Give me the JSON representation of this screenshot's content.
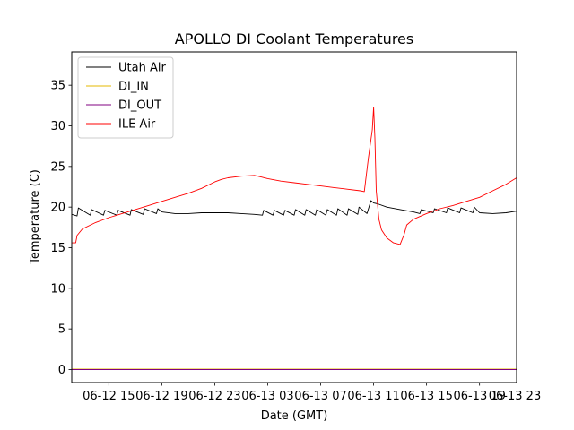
{
  "chart_data": {
    "type": "line",
    "title": "APOLLO DI Coolant Temperatures",
    "xlabel": "Date (GMT)",
    "ylabel": "Temperature (C)",
    "xlim": [
      12.2,
      45.8
    ],
    "ylim": [
      -1.6,
      39.1
    ],
    "yticks": [
      0,
      5,
      10,
      15,
      20,
      25,
      30,
      35
    ],
    "xticks": [
      {
        "value": 15,
        "label": "06-12 15"
      },
      {
        "value": 19,
        "label": "06-12 19"
      },
      {
        "value": 23,
        "label": "06-12 23"
      },
      {
        "value": 27,
        "label": "06-13 03"
      },
      {
        "value": 31,
        "label": "06-13 07"
      },
      {
        "value": 35,
        "label": "06-13 11"
      },
      {
        "value": 39,
        "label": "06-13 15"
      },
      {
        "value": 43,
        "label": "06-13 19"
      },
      {
        "value": 47,
        "label": "06-13 23"
      }
    ],
    "legend_position": "top-left",
    "grid": false,
    "series": [
      {
        "name": "Utah Air",
        "color": "#000000",
        "x": [
          12.2,
          12.6,
          12.7,
          13.6,
          13.7,
          14.6,
          14.7,
          15.6,
          15.7,
          16.6,
          16.7,
          17.6,
          17.7,
          18.6,
          18.7,
          19.0,
          20.0,
          21.0,
          22.0,
          23.0,
          24.0,
          25.0,
          26.0,
          26.6,
          26.7,
          27.4,
          27.5,
          28.2,
          28.3,
          29.0,
          29.1,
          29.8,
          29.9,
          30.6,
          30.7,
          31.4,
          31.5,
          32.2,
          32.3,
          33.0,
          33.1,
          33.8,
          33.9,
          34.5,
          34.8,
          35.0,
          35.3,
          36.0,
          37.0,
          38.0,
          38.5,
          38.6,
          39.5,
          39.6,
          40.5,
          40.6,
          41.5,
          41.6,
          42.5,
          42.6,
          43.0,
          44.0,
          45.0,
          45.8
        ],
        "values": [
          19.1,
          18.9,
          19.9,
          19.0,
          19.7,
          19.0,
          19.6,
          19.0,
          19.6,
          19.0,
          19.7,
          19.1,
          19.8,
          19.2,
          19.8,
          19.4,
          19.2,
          19.2,
          19.3,
          19.3,
          19.3,
          19.2,
          19.1,
          19.0,
          19.6,
          19.0,
          19.6,
          19.0,
          19.6,
          19.0,
          19.7,
          19.0,
          19.7,
          19.0,
          19.7,
          19.0,
          19.7,
          19.0,
          19.8,
          19.0,
          19.8,
          19.1,
          20.0,
          19.2,
          20.8,
          20.5,
          20.4,
          20.0,
          19.7,
          19.4,
          19.2,
          19.7,
          19.3,
          19.8,
          19.3,
          19.9,
          19.3,
          19.9,
          19.3,
          20.0,
          19.3,
          19.2,
          19.3,
          19.5
        ]
      },
      {
        "name": "DI_IN",
        "color": "#e6b800",
        "x": [
          12.2,
          45.8
        ],
        "values": [
          0.05,
          0.05
        ]
      },
      {
        "name": "DI_OUT",
        "color": "#800080",
        "x": [
          12.2,
          45.8
        ],
        "values": [
          0.0,
          0.0
        ]
      },
      {
        "name": "ILE Air",
        "color": "#ff0000",
        "x": [
          12.2,
          12.5,
          12.6,
          13.0,
          14.0,
          15.0,
          16.0,
          17.0,
          18.0,
          19.0,
          20.0,
          21.0,
          22.0,
          23.0,
          23.5,
          24.0,
          25.0,
          26.0,
          26.5,
          27.0,
          28.0,
          29.0,
          30.0,
          31.0,
          32.0,
          33.0,
          34.0,
          34.3,
          34.6,
          34.9,
          35.0,
          35.1,
          35.2,
          35.4,
          35.6,
          36.0,
          36.5,
          37.0,
          37.3,
          37.5,
          38.0,
          39.0,
          40.0,
          41.0,
          42.0,
          43.0,
          44.0,
          45.0,
          45.8
        ],
        "values": [
          15.6,
          15.6,
          16.5,
          17.3,
          18.1,
          18.7,
          19.2,
          19.7,
          20.2,
          20.7,
          21.2,
          21.7,
          22.3,
          23.1,
          23.4,
          23.6,
          23.8,
          23.9,
          23.7,
          23.5,
          23.2,
          23.0,
          22.8,
          22.6,
          22.4,
          22.2,
          22.0,
          21.9,
          26.0,
          29.5,
          32.3,
          28.5,
          22.0,
          18.5,
          17.2,
          16.2,
          15.6,
          15.4,
          16.6,
          17.8,
          18.5,
          19.2,
          19.8,
          20.2,
          20.7,
          21.2,
          22.0,
          22.8,
          23.6
        ]
      }
    ]
  }
}
